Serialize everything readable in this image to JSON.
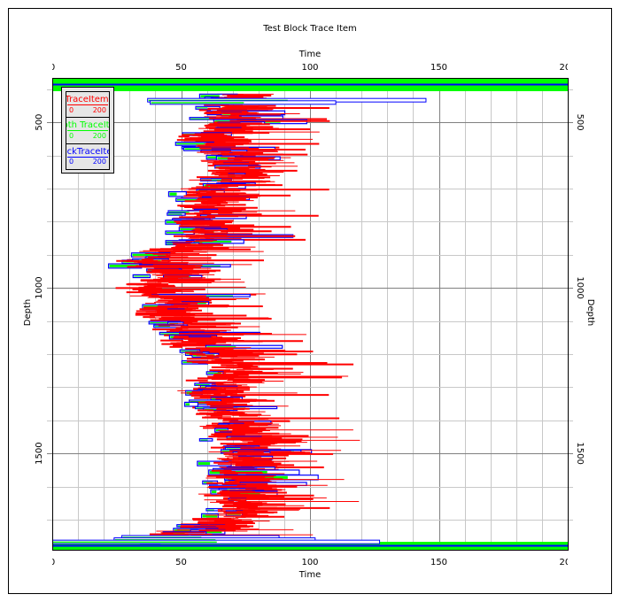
{
  "chart_data": {
    "type": "well-log-trace",
    "title": "Test Block Trace Item",
    "xlabel": "Time",
    "ylabel": "Depth",
    "xlim": [
      0,
      200
    ],
    "ylim": [
      366,
      1791
    ],
    "x_ticks": [
      "0",
      "50",
      "100",
      "150",
      "200"
    ],
    "y_ticks": [
      "500",
      "1000",
      "1500"
    ],
    "grid": true,
    "legend_position": "top-left",
    "legend": [
      {
        "name": "TraceItem",
        "min": "0",
        "max": "200",
        "color": "#ff0000"
      },
      {
        "name": "Depth TraceItem",
        "min": "0",
        "max": "200",
        "color": "#00ff00"
      },
      {
        "name": "BlockTraceItem",
        "min": "0",
        "max": "200",
        "color": "#0000ff"
      }
    ],
    "center_profile": [
      [
        420,
        70
      ],
      [
        452,
        68
      ],
      [
        500,
        75
      ],
      [
        545,
        62
      ],
      [
        600,
        72
      ],
      [
        665,
        72
      ],
      [
        705,
        62
      ],
      [
        760,
        62
      ],
      [
        815,
        60
      ],
      [
        840,
        62
      ],
      [
        880,
        50
      ],
      [
        920,
        40
      ],
      [
        960,
        50
      ],
      [
        1000,
        38
      ],
      [
        1040,
        50
      ],
      [
        1080,
        45
      ],
      [
        1120,
        55
      ],
      [
        1160,
        55
      ],
      [
        1200,
        65
      ],
      [
        1255,
        72
      ],
      [
        1307,
        65
      ],
      [
        1360,
        70
      ],
      [
        1415,
        73
      ],
      [
        1468,
        78
      ],
      [
        1520,
        75
      ],
      [
        1575,
        73
      ],
      [
        1628,
        73
      ],
      [
        1682,
        75
      ],
      [
        1722,
        60
      ],
      [
        1750,
        50
      ]
    ],
    "top_band": {
      "depth": [
        366,
        406
      ],
      "time": [
        0,
        200
      ]
    },
    "bottom_band": {
      "depth": [
        1767,
        1791
      ],
      "time": [
        0,
        200
      ]
    },
    "seed": 12345
  }
}
